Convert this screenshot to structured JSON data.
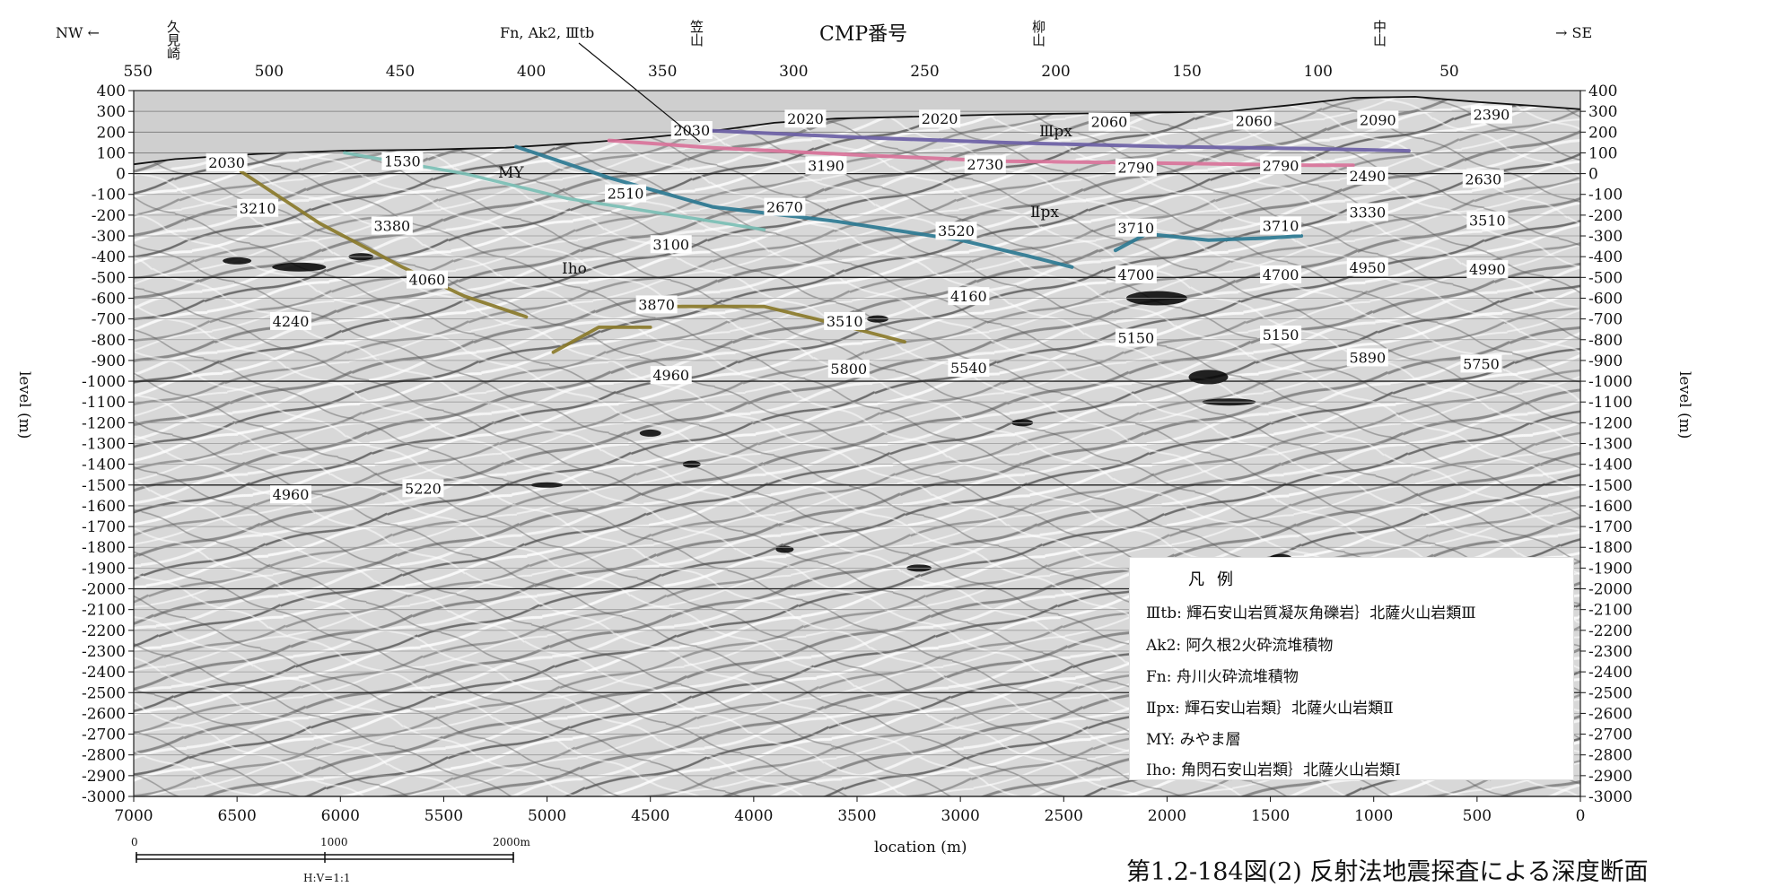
{
  "orientation": {
    "left": "NW ←",
    "right": "→ SE"
  },
  "cmp_title": "CMP番号",
  "cmp_ticks": [
    "550",
    "500",
    "450",
    "400",
    "350",
    "300",
    "250",
    "200",
    "150",
    "100",
    "50"
  ],
  "places": [
    {
      "name": "久見崎"
    },
    {
      "name": "笠山"
    },
    {
      "name": "柳山"
    },
    {
      "name": "中山"
    }
  ],
  "fault_label": "Fn, Ak2, Ⅲtb",
  "y_axis_label": "level (m)",
  "y_ticks": [
    "400",
    "300",
    "200",
    "100",
    "0",
    "-100",
    "-200",
    "-300",
    "-400",
    "-500",
    "-600",
    "-700",
    "-800",
    "-900",
    "-1000",
    "-1100",
    "-1200",
    "-1300",
    "-1400",
    "-1500",
    "-1600",
    "-1700",
    "-1800",
    "-1900",
    "-2000",
    "-2100",
    "-2200",
    "-2300",
    "-2400",
    "-2500",
    "-2600",
    "-2700",
    "-2800",
    "-2900",
    "-3000"
  ],
  "x_axis_label": "location (m)",
  "x_ticks": [
    "7000",
    "6500",
    "6000",
    "5500",
    "5000",
    "4500",
    "4000",
    "3500",
    "3000",
    "2500",
    "2000",
    "1500",
    "1000",
    "500",
    "0"
  ],
  "scale_bar": {
    "start": "0",
    "mid": "1000",
    "end": "2000m",
    "ratio": "H:V=1:1"
  },
  "unit_labels": [
    {
      "text": "MY"
    },
    {
      "text": "Ⅲpx"
    },
    {
      "text": "Ⅱpx"
    },
    {
      "text": "Ⅰho"
    }
  ],
  "velocities": [
    {
      "text": "2030",
      "loc": 6550,
      "lvl": 55
    },
    {
      "text": "1530",
      "loc": 5700,
      "lvl": 60
    },
    {
      "text": "2030",
      "loc": 4300,
      "lvl": 210
    },
    {
      "text": "2020",
      "loc": 3750,
      "lvl": 265
    },
    {
      "text": "2020",
      "loc": 3100,
      "lvl": 265
    },
    {
      "text": "2060",
      "loc": 2280,
      "lvl": 250
    },
    {
      "text": "2060",
      "loc": 1580,
      "lvl": 255
    },
    {
      "text": "2090",
      "loc": 980,
      "lvl": 260
    },
    {
      "text": "2390",
      "loc": 430,
      "lvl": 285
    },
    {
      "text": "3190",
      "loc": 3650,
      "lvl": 40
    },
    {
      "text": "2730",
      "loc": 2880,
      "lvl": 45
    },
    {
      "text": "2790",
      "loc": 2150,
      "lvl": 30
    },
    {
      "text": "2790",
      "loc": 1450,
      "lvl": 40
    },
    {
      "text": "2490",
      "loc": 1030,
      "lvl": -10
    },
    {
      "text": "2630",
      "loc": 470,
      "lvl": -25
    },
    {
      "text": "3210",
      "loc": 6400,
      "lvl": -165
    },
    {
      "text": "3380",
      "loc": 5750,
      "lvl": -250
    },
    {
      "text": "2510",
      "loc": 4620,
      "lvl": -95
    },
    {
      "text": "2670",
      "loc": 3850,
      "lvl": -160
    },
    {
      "text": "3520",
      "loc": 3020,
      "lvl": -275
    },
    {
      "text": "3100",
      "loc": 4400,
      "lvl": -340
    },
    {
      "text": "3710",
      "loc": 2150,
      "lvl": -260
    },
    {
      "text": "3710",
      "loc": 1450,
      "lvl": -250
    },
    {
      "text": "3330",
      "loc": 1030,
      "lvl": -185
    },
    {
      "text": "3510",
      "loc": 450,
      "lvl": -225
    },
    {
      "text": "4060",
      "loc": 5580,
      "lvl": -510
    },
    {
      "text": "4160",
      "loc": 2960,
      "lvl": -590
    },
    {
      "text": "4700",
      "loc": 2150,
      "lvl": -485
    },
    {
      "text": "4700",
      "loc": 1450,
      "lvl": -485
    },
    {
      "text": "4950",
      "loc": 1030,
      "lvl": -450
    },
    {
      "text": "4990",
      "loc": 450,
      "lvl": -460
    },
    {
      "text": "4240",
      "loc": 6240,
      "lvl": -710
    },
    {
      "text": "3870",
      "loc": 4470,
      "lvl": -630
    },
    {
      "text": "3510",
      "loc": 3560,
      "lvl": -710
    },
    {
      "text": "5150",
      "loc": 2150,
      "lvl": -790
    },
    {
      "text": "5150",
      "loc": 1450,
      "lvl": -775
    },
    {
      "text": "5890",
      "loc": 1030,
      "lvl": -885
    },
    {
      "text": "5750",
      "loc": 480,
      "lvl": -915
    },
    {
      "text": "4960",
      "loc": 4400,
      "lvl": -970
    },
    {
      "text": "5800",
      "loc": 3540,
      "lvl": -940
    },
    {
      "text": "5540",
      "loc": 2960,
      "lvl": -935
    },
    {
      "text": "4960",
      "loc": 6240,
      "lvl": -1545
    },
    {
      "text": "5220",
      "loc": 5600,
      "lvl": -1515
    }
  ],
  "legend": {
    "title": "凡例",
    "items": [
      "Ⅲtb: 輝石安山岩質凝灰角礫岩｝北薩火山岩類Ⅲ",
      "Ak2: 阿久根2火砕流堆積物",
      "Fn: 舟川火砕流堆積物",
      "Ⅱpx: 輝石安山岩類｝北薩火山岩類Ⅱ",
      "MY: みやま層",
      "Ⅰho: 角閃石安山岩類｝北薩火山岩類Ⅰ"
    ]
  },
  "horizon_colors": {
    "IIItb": "#6b5fa5",
    "Ak2": "#d9739a",
    "MY": "#7bbfb5",
    "IIpx": "#2c7a92",
    "Iho": "#8a7a2a"
  },
  "caption": "第1.2-184図(2)  反射法地震探査による深度断面"
}
